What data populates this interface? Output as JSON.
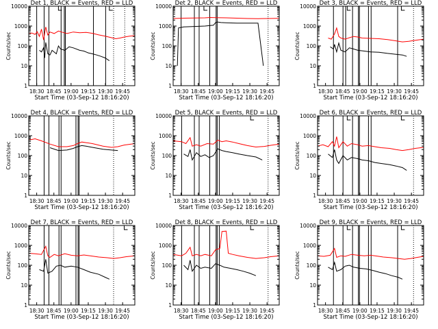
{
  "axis": {
    "ylabel": "Counts/sec",
    "xlabel": "Start Time (03-Sep-12 18:16:20)",
    "y_ticks": [
      "1",
      "10",
      "100",
      "1000",
      "10000"
    ],
    "x_ticks": [
      "18:30",
      "18:45",
      "19:00",
      "19:15",
      "19:30",
      "19:45"
    ],
    "y_scale": "log",
    "ylim": [
      1,
      10000
    ]
  },
  "chart_data": [
    {
      "type": "line",
      "title": "Det 1, BLACK = Events, RED = LLD",
      "vlines_solid": [
        0.075,
        0.145,
        0.19,
        0.305,
        0.335,
        0.345,
        0.61,
        0.725
      ],
      "vlines_dotted": [
        0.8,
        0.905
      ],
      "small_marks": [
        0.28,
        0.76
      ],
      "red": [
        [
          0.0,
          400
        ],
        [
          0.03,
          450
        ],
        [
          0.06,
          380
        ],
        [
          0.08,
          520
        ],
        [
          0.1,
          300
        ],
        [
          0.12,
          700
        ],
        [
          0.14,
          200
        ],
        [
          0.16,
          900
        ],
        [
          0.18,
          350
        ],
        [
          0.2,
          500
        ],
        [
          0.24,
          420
        ],
        [
          0.28,
          560
        ],
        [
          0.32,
          480
        ],
        [
          0.36,
          420
        ],
        [
          0.42,
          500
        ],
        [
          0.48,
          460
        ],
        [
          0.54,
          480
        ],
        [
          0.6,
          430
        ],
        [
          0.66,
          360
        ],
        [
          0.72,
          310
        ],
        [
          0.78,
          260
        ],
        [
          0.82,
          230
        ],
        [
          0.86,
          250
        ],
        [
          0.9,
          280
        ],
        [
          0.95,
          310
        ],
        [
          1.0,
          330
        ]
      ],
      "black": [
        [
          0.1,
          60
        ],
        [
          0.12,
          50
        ],
        [
          0.14,
          80
        ],
        [
          0.15,
          25
        ],
        [
          0.16,
          150
        ],
        [
          0.18,
          40
        ],
        [
          0.2,
          35
        ],
        [
          0.22,
          60
        ],
        [
          0.26,
          40
        ],
        [
          0.28,
          100
        ],
        [
          0.3,
          70
        ],
        [
          0.34,
          60
        ],
        [
          0.38,
          90
        ],
        [
          0.42,
          80
        ],
        [
          0.48,
          60
        ],
        [
          0.52,
          55
        ],
        [
          0.56,
          45
        ],
        [
          0.6,
          40
        ],
        [
          0.64,
          35
        ],
        [
          0.68,
          30
        ],
        [
          0.72,
          25
        ],
        [
          0.76,
          18
        ]
      ]
    },
    {
      "type": "line",
      "title": "Det 2, BLACK = Events, RED = LLD",
      "vlines_solid": [
        0.075,
        0.2,
        0.245,
        0.345,
        0.405,
        0.415
      ],
      "vlines_dotted": [
        0.895
      ],
      "small_marks": [
        0.29
      ],
      "red": [
        [
          0.0,
          2400
        ],
        [
          0.1,
          2500
        ],
        [
          0.2,
          2550
        ],
        [
          0.3,
          2600
        ],
        [
          0.35,
          2700
        ],
        [
          0.4,
          2650
        ],
        [
          0.5,
          2600
        ],
        [
          0.6,
          2500
        ],
        [
          0.7,
          2400
        ],
        [
          0.8,
          2350
        ],
        [
          0.9,
          2400
        ],
        [
          1.0,
          2450
        ]
      ],
      "black": [
        [
          0.04,
          10
        ],
        [
          0.05,
          800
        ],
        [
          0.1,
          900
        ],
        [
          0.2,
          950
        ],
        [
          0.3,
          1000
        ],
        [
          0.38,
          1100
        ],
        [
          0.4,
          1500
        ],
        [
          0.42,
          1600
        ],
        [
          0.45,
          1500
        ],
        [
          0.5,
          1450
        ],
        [
          0.6,
          1400
        ],
        [
          0.7,
          1400
        ],
        [
          0.8,
          1400
        ],
        [
          0.85,
          10
        ]
      ]
    },
    {
      "type": "line",
      "title": "Det 3, BLACK = Events, RED = LLD",
      "vlines_solid": [
        0.15,
        0.24,
        0.265,
        0.33,
        0.385,
        0.395,
        0.48,
        0.505,
        0.755
      ],
      "vlines_dotted": [
        0.905
      ],
      "small_marks": [
        0.28,
        0.79
      ],
      "red": [
        [
          0.1,
          250
        ],
        [
          0.13,
          220
        ],
        [
          0.16,
          400
        ],
        [
          0.18,
          800
        ],
        [
          0.2,
          300
        ],
        [
          0.22,
          250
        ],
        [
          0.26,
          220
        ],
        [
          0.3,
          260
        ],
        [
          0.34,
          300
        ],
        [
          0.38,
          280
        ],
        [
          0.42,
          250
        ],
        [
          0.5,
          240
        ],
        [
          0.58,
          230
        ],
        [
          0.66,
          210
        ],
        [
          0.74,
          180
        ],
        [
          0.8,
          160
        ],
        [
          0.86,
          170
        ],
        [
          0.92,
          190
        ],
        [
          1.0,
          220
        ]
      ],
      "black": [
        [
          0.12,
          90
        ],
        [
          0.15,
          70
        ],
        [
          0.16,
          120
        ],
        [
          0.18,
          50
        ],
        [
          0.2,
          140
        ],
        [
          0.22,
          60
        ],
        [
          0.26,
          50
        ],
        [
          0.3,
          80
        ],
        [
          0.34,
          70
        ],
        [
          0.38,
          60
        ],
        [
          0.44,
          55
        ],
        [
          0.5,
          50
        ],
        [
          0.58,
          48
        ],
        [
          0.66,
          42
        ],
        [
          0.74,
          38
        ],
        [
          0.8,
          35
        ],
        [
          0.84,
          30
        ]
      ]
    },
    {
      "type": "line",
      "title": "Det 4, BLACK = Events, RED = LLD",
      "vlines_solid": [
        0.145,
        0.19,
        0.285,
        0.305,
        0.445,
        0.465,
        0.475
      ],
      "vlines_dotted": [
        0.8
      ],
      "small_marks": [],
      "red": [
        [
          0.0,
          600
        ],
        [
          0.06,
          700
        ],
        [
          0.12,
          550
        ],
        [
          0.2,
          380
        ],
        [
          0.28,
          280
        ],
        [
          0.36,
          280
        ],
        [
          0.42,
          320
        ],
        [
          0.46,
          400
        ],
        [
          0.5,
          480
        ],
        [
          0.54,
          450
        ],
        [
          0.6,
          400
        ],
        [
          0.7,
          300
        ],
        [
          0.78,
          260
        ],
        [
          0.84,
          280
        ],
        [
          0.9,
          340
        ],
        [
          1.0,
          400
        ]
      ],
      "black": [
        [
          0.2,
          250
        ],
        [
          0.28,
          180
        ],
        [
          0.36,
          190
        ],
        [
          0.42,
          230
        ],
        [
          0.46,
          280
        ],
        [
          0.5,
          320
        ],
        [
          0.54,
          300
        ],
        [
          0.6,
          260
        ],
        [
          0.7,
          210
        ],
        [
          0.78,
          190
        ],
        [
          0.84,
          180
        ]
      ]
    },
    {
      "type": "line",
      "title": "Det 5, BLACK = Events, RED = LLD",
      "vlines_solid": [
        0.08,
        0.2,
        0.245,
        0.345,
        0.405,
        0.415,
        0.435
      ],
      "vlines_dotted": [
        0.895
      ],
      "small_marks": [
        0.73
      ],
      "red": [
        [
          0.0,
          550
        ],
        [
          0.08,
          500
        ],
        [
          0.12,
          400
        ],
        [
          0.16,
          800
        ],
        [
          0.18,
          300
        ],
        [
          0.22,
          350
        ],
        [
          0.26,
          300
        ],
        [
          0.32,
          400
        ],
        [
          0.38,
          380
        ],
        [
          0.42,
          600
        ],
        [
          0.46,
          500
        ],
        [
          0.5,
          550
        ],
        [
          0.56,
          480
        ],
        [
          0.62,
          400
        ],
        [
          0.7,
          320
        ],
        [
          0.78,
          270
        ],
        [
          0.86,
          290
        ],
        [
          0.92,
          330
        ],
        [
          1.0,
          380
        ]
      ],
      "black": [
        [
          0.1,
          120
        ],
        [
          0.14,
          90
        ],
        [
          0.16,
          200
        ],
        [
          0.18,
          60
        ],
        [
          0.22,
          140
        ],
        [
          0.26,
          90
        ],
        [
          0.3,
          110
        ],
        [
          0.34,
          80
        ],
        [
          0.38,
          100
        ],
        [
          0.42,
          220
        ],
        [
          0.46,
          180
        ],
        [
          0.5,
          160
        ],
        [
          0.56,
          140
        ],
        [
          0.62,
          120
        ],
        [
          0.7,
          100
        ],
        [
          0.78,
          85
        ],
        [
          0.84,
          60
        ]
      ]
    },
    {
      "type": "line",
      "title": "Det 6, BLACK = Events, RED = LLD",
      "vlines_solid": [
        0.15,
        0.24,
        0.33,
        0.385,
        0.395,
        0.48,
        0.505
      ],
      "vlines_dotted": [
        0.905
      ],
      "small_marks": [
        0.28,
        0.79
      ],
      "red": [
        [
          0.0,
          300
        ],
        [
          0.05,
          350
        ],
        [
          0.1,
          280
        ],
        [
          0.14,
          500
        ],
        [
          0.16,
          300
        ],
        [
          0.18,
          900
        ],
        [
          0.2,
          250
        ],
        [
          0.24,
          500
        ],
        [
          0.28,
          300
        ],
        [
          0.32,
          400
        ],
        [
          0.38,
          350
        ],
        [
          0.42,
          300
        ],
        [
          0.48,
          320
        ],
        [
          0.54,
          280
        ],
        [
          0.6,
          250
        ],
        [
          0.68,
          230
        ],
        [
          0.74,
          200
        ],
        [
          0.8,
          180
        ],
        [
          0.86,
          200
        ],
        [
          0.92,
          230
        ],
        [
          1.0,
          260
        ]
      ],
      "black": [
        [
          0.1,
          120
        ],
        [
          0.14,
          80
        ],
        [
          0.16,
          200
        ],
        [
          0.18,
          60
        ],
        [
          0.2,
          40
        ],
        [
          0.24,
          100
        ],
        [
          0.28,
          60
        ],
        [
          0.32,
          80
        ],
        [
          0.38,
          70
        ],
        [
          0.42,
          60
        ],
        [
          0.48,
          55
        ],
        [
          0.54,
          45
        ],
        [
          0.6,
          40
        ],
        [
          0.68,
          35
        ],
        [
          0.74,
          30
        ],
        [
          0.8,
          25
        ],
        [
          0.84,
          18
        ]
      ]
    },
    {
      "type": "line",
      "title": "Det 7, BLACK = Events, RED = LLD",
      "vlines_solid": [
        0.145,
        0.19,
        0.285,
        0.305,
        0.445,
        0.465,
        0.475
      ],
      "vlines_dotted": [
        0.8
      ],
      "small_marks": [
        0.9
      ],
      "red": [
        [
          0.0,
          400
        ],
        [
          0.06,
          380
        ],
        [
          0.12,
          350
        ],
        [
          0.16,
          900
        ],
        [
          0.18,
          300
        ],
        [
          0.2,
          250
        ],
        [
          0.24,
          350
        ],
        [
          0.28,
          300
        ],
        [
          0.34,
          380
        ],
        [
          0.4,
          320
        ],
        [
          0.46,
          300
        ],
        [
          0.52,
          330
        ],
        [
          0.58,
          300
        ],
        [
          0.66,
          260
        ],
        [
          0.74,
          240
        ],
        [
          0.8,
          220
        ],
        [
          0.86,
          240
        ],
        [
          0.92,
          270
        ],
        [
          1.0,
          300
        ]
      ],
      "black": [
        [
          0.1,
          60
        ],
        [
          0.14,
          50
        ],
        [
          0.16,
          200
        ],
        [
          0.18,
          40
        ],
        [
          0.22,
          50
        ],
        [
          0.26,
          90
        ],
        [
          0.3,
          100
        ],
        [
          0.34,
          80
        ],
        [
          0.4,
          90
        ],
        [
          0.46,
          80
        ],
        [
          0.52,
          60
        ],
        [
          0.58,
          45
        ],
        [
          0.66,
          35
        ],
        [
          0.72,
          25
        ],
        [
          0.76,
          20
        ]
      ]
    },
    {
      "type": "line",
      "title": "Det 8, BLACK = Events, RED = LLD",
      "vlines_solid": [
        0.08,
        0.2,
        0.245,
        0.345,
        0.405,
        0.415,
        0.435
      ],
      "vlines_dotted": [
        0.895
      ],
      "small_marks": [
        0.73
      ],
      "red": [
        [
          0.0,
          350
        ],
        [
          0.08,
          300
        ],
        [
          0.12,
          400
        ],
        [
          0.16,
          800
        ],
        [
          0.18,
          300
        ],
        [
          0.22,
          350
        ],
        [
          0.26,
          300
        ],
        [
          0.3,
          350
        ],
        [
          0.36,
          300
        ],
        [
          0.4,
          600
        ],
        [
          0.44,
          700
        ],
        [
          0.46,
          5000
        ],
        [
          0.5,
          5200
        ],
        [
          0.52,
          400
        ],
        [
          0.56,
          350
        ],
        [
          0.62,
          300
        ],
        [
          0.7,
          250
        ],
        [
          0.78,
          220
        ],
        [
          0.86,
          240
        ],
        [
          0.92,
          270
        ],
        [
          1.0,
          300
        ]
      ],
      "black": [
        [
          0.1,
          100
        ],
        [
          0.14,
          60
        ],
        [
          0.16,
          180
        ],
        [
          0.18,
          50
        ],
        [
          0.22,
          100
        ],
        [
          0.26,
          70
        ],
        [
          0.3,
          80
        ],
        [
          0.36,
          70
        ],
        [
          0.4,
          120
        ],
        [
          0.44,
          100
        ],
        [
          0.48,
          80
        ],
        [
          0.54,
          70
        ],
        [
          0.6,
          60
        ],
        [
          0.66,
          50
        ],
        [
          0.72,
          40
        ],
        [
          0.78,
          30
        ]
      ]
    },
    {
      "type": "line",
      "title": "Det 9, BLACK = Events, RED = LLD",
      "vlines_solid": [
        0.15,
        0.24,
        0.33,
        0.385,
        0.395,
        0.48,
        0.505,
        0.755
      ],
      "vlines_dotted": [
        0.905
      ],
      "small_marks": [
        0.28,
        0.79
      ],
      "red": [
        [
          0.0,
          300
        ],
        [
          0.06,
          280
        ],
        [
          0.12,
          320
        ],
        [
          0.16,
          700
        ],
        [
          0.18,
          250
        ],
        [
          0.22,
          300
        ],
        [
          0.26,
          280
        ],
        [
          0.32,
          350
        ],
        [
          0.38,
          320
        ],
        [
          0.44,
          300
        ],
        [
          0.5,
          320
        ],
        [
          0.56,
          290
        ],
        [
          0.62,
          260
        ],
        [
          0.7,
          240
        ],
        [
          0.76,
          220
        ],
        [
          0.82,
          200
        ],
        [
          0.88,
          220
        ],
        [
          0.94,
          250
        ],
        [
          1.0,
          280
        ]
      ],
      "black": [
        [
          0.1,
          80
        ],
        [
          0.14,
          60
        ],
        [
          0.16,
          140
        ],
        [
          0.18,
          50
        ],
        [
          0.22,
          60
        ],
        [
          0.26,
          90
        ],
        [
          0.3,
          100
        ],
        [
          0.34,
          80
        ],
        [
          0.4,
          70
        ],
        [
          0.46,
          65
        ],
        [
          0.52,
          55
        ],
        [
          0.58,
          45
        ],
        [
          0.64,
          38
        ],
        [
          0.7,
          30
        ],
        [
          0.76,
          25
        ],
        [
          0.8,
          20
        ]
      ]
    }
  ]
}
